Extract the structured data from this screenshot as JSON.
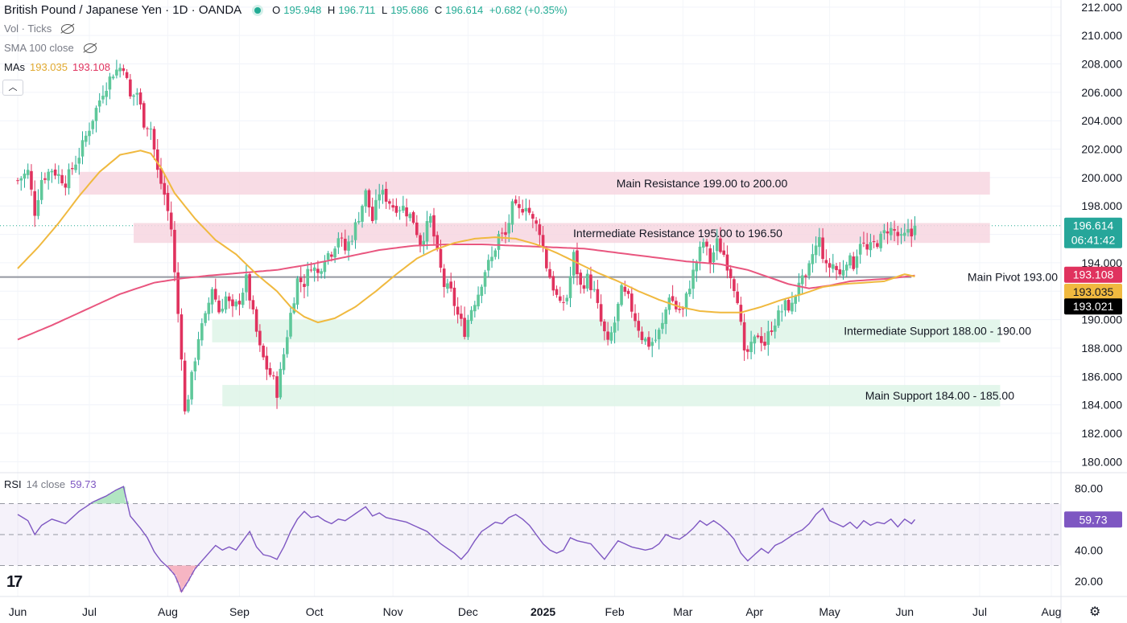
{
  "header": {
    "symbol_title": "British Pound / Japanese Yen · 1D · OANDA",
    "open_label": "O",
    "open": "195.948",
    "high_label": "H",
    "high": "196.711",
    "low_label": "L",
    "low": "195.686",
    "close_label": "C",
    "close": "196.614",
    "change": "+0.682 (+0.35%)"
  },
  "indicators": {
    "vol_label": "Vol · Ticks",
    "sma_label": "SMA 100 close",
    "mas_label": "MAs",
    "ma_fast_value": "193.035",
    "ma_slow_value": "193.108",
    "rsi_label": "RSI",
    "rsi_params": "14 close",
    "rsi_value": "59.73"
  },
  "price_tags": {
    "last_price": "196.614",
    "countdown": "06:41:42",
    "ma_slow": "193.108",
    "ma_fast": "193.035",
    "pivot": "193.021"
  },
  "colors": {
    "up": "#22ab94",
    "up_fill": "#5fc89a",
    "down": "#e0325e",
    "ma_fast": "#f0b93f",
    "ma_slow": "#e9567f",
    "rsi": "#7e57c2",
    "resistance_zone": "#f7d6e0",
    "support_zone": "#def5e8"
  },
  "chart_data": {
    "type": "candlestick",
    "title": "British Pound / Japanese Yen · 1D · OANDA",
    "price_axis": {
      "ylim": [
        179.0,
        212.5
      ],
      "ticks": [
        "212.000",
        "210.000",
        "208.000",
        "206.000",
        "204.000",
        "202.000",
        "200.000",
        "198.000",
        "196.000",
        "194.000",
        "192.000",
        "190.000",
        "188.000",
        "186.000",
        "184.000",
        "182.000",
        "180.000"
      ]
    },
    "time_axis": {
      "labels": [
        "Jun",
        "Jul",
        "Aug",
        "Sep",
        "Oct",
        "Nov",
        "Dec",
        "2025",
        "Feb",
        "Mar",
        "Apr",
        "May",
        "Jun",
        "Jul",
        "Aug"
      ],
      "label_index": [
        0,
        21,
        44,
        65,
        87,
        110,
        132,
        154,
        175,
        195,
        216,
        238,
        260,
        282,
        303
      ],
      "total_days": 303
    },
    "zones": [
      {
        "label": "Main Resistance 199.00 to 200.00",
        "low": 198.8,
        "high": 200.4,
        "start": 18,
        "end": 285,
        "kind": "resistance"
      },
      {
        "label": "Intermediate Resistance 195.00 to 196.50",
        "low": 195.4,
        "high": 196.8,
        "start": 34,
        "end": 285,
        "kind": "resistance"
      },
      {
        "label": "Intermediate Support 188.00 - 190.00",
        "low": 188.4,
        "high": 190.0,
        "start": 57,
        "end": 288,
        "kind": "support"
      },
      {
        "label": "Main Support 184.00 - 185.00",
        "low": 183.9,
        "high": 185.4,
        "start": 60,
        "end": 288,
        "kind": "support"
      }
    ],
    "pivot": {
      "label": "Main Pivot 193.00",
      "value": 193.0
    },
    "anchors": [
      [
        0,
        199.8
      ],
      [
        3,
        200.4
      ],
      [
        5,
        197.6
      ],
      [
        7,
        199.9
      ],
      [
        10,
        200.6
      ],
      [
        14,
        199.7
      ],
      [
        18,
        201.6
      ],
      [
        22,
        204.2
      ],
      [
        25,
        206.1
      ],
      [
        28,
        207.4
      ],
      [
        31,
        207.9
      ],
      [
        33,
        205.6
      ],
      [
        35,
        206.0
      ],
      [
        37,
        203.9
      ],
      [
        39,
        203.5
      ],
      [
        41,
        200.4
      ],
      [
        43,
        198.8
      ],
      [
        45,
        196.4
      ],
      [
        46,
        193.2
      ],
      [
        48,
        187.6
      ],
      [
        49,
        183.4
      ],
      [
        51,
        185.9
      ],
      [
        53,
        188.8
      ],
      [
        55,
        190.1
      ],
      [
        57,
        192.3
      ],
      [
        59,
        190.6
      ],
      [
        61,
        191.6
      ],
      [
        63,
        190.6
      ],
      [
        65,
        191.4
      ],
      [
        67,
        192.8
      ],
      [
        69,
        190.3
      ],
      [
        71,
        187.9
      ],
      [
        73,
        186.6
      ],
      [
        75,
        185.7
      ],
      [
        76,
        184.9
      ],
      [
        78,
        187.6
      ],
      [
        80,
        190.4
      ],
      [
        82,
        192.8
      ],
      [
        84,
        192.6
      ],
      [
        86,
        193.9
      ],
      [
        88,
        193.2
      ],
      [
        90,
        194.5
      ],
      [
        92,
        194.8
      ],
      [
        94,
        195.9
      ],
      [
        96,
        194.9
      ],
      [
        98,
        195.9
      ],
      [
        100,
        197.3
      ],
      [
        102,
        198.9
      ],
      [
        104,
        197.0
      ],
      [
        106,
        199.0
      ],
      [
        108,
        198.6
      ],
      [
        110,
        198.0
      ],
      [
        113,
        197.9
      ],
      [
        116,
        197.0
      ],
      [
        118,
        195.4
      ],
      [
        121,
        197.1
      ],
      [
        123,
        194.6
      ],
      [
        125,
        192.4
      ],
      [
        127,
        191.9
      ],
      [
        129,
        190.3
      ],
      [
        131,
        189.2
      ],
      [
        133,
        190.8
      ],
      [
        135,
        191.9
      ],
      [
        137,
        193.5
      ],
      [
        139,
        194.3
      ],
      [
        141,
        195.9
      ],
      [
        143,
        195.9
      ],
      [
        145,
        197.9
      ],
      [
        147,
        197.6
      ],
      [
        149,
        198.2
      ],
      [
        151,
        196.9
      ],
      [
        153,
        196.3
      ],
      [
        155,
        193.8
      ],
      [
        157,
        192.3
      ],
      [
        159,
        190.9
      ],
      [
        161,
        191.6
      ],
      [
        163,
        194.5
      ],
      [
        165,
        192.3
      ],
      [
        167,
        192.9
      ],
      [
        169,
        191.9
      ],
      [
        171,
        189.8
      ],
      [
        173,
        188.2
      ],
      [
        175,
        189.8
      ],
      [
        177,
        192.0
      ],
      [
        179,
        191.4
      ],
      [
        181,
        190.1
      ],
      [
        183,
        188.8
      ],
      [
        185,
        188.3
      ],
      [
        187,
        188.6
      ],
      [
        189,
        189.6
      ],
      [
        191,
        191.8
      ],
      [
        193,
        190.8
      ],
      [
        195,
        190.6
      ],
      [
        197,
        192.5
      ],
      [
        199,
        194.1
      ],
      [
        201,
        195.5
      ],
      [
        203,
        194.1
      ],
      [
        205,
        195.4
      ],
      [
        207,
        194.6
      ],
      [
        209,
        193.2
      ],
      [
        211,
        191.6
      ],
      [
        213,
        187.4
      ],
      [
        215,
        188.0
      ],
      [
        217,
        189.0
      ],
      [
        219,
        188.3
      ],
      [
        221,
        189.5
      ],
      [
        223,
        190.3
      ],
      [
        225,
        191.0
      ],
      [
        227,
        190.9
      ],
      [
        229,
        192.8
      ],
      [
        231,
        192.6
      ],
      [
        233,
        194.6
      ],
      [
        235,
        195.6
      ],
      [
        237,
        193.6
      ],
      [
        239,
        193.9
      ],
      [
        241,
        193.1
      ],
      [
        243,
        194.3
      ],
      [
        245,
        193.9
      ],
      [
        247,
        195.6
      ],
      [
        249,
        194.8
      ],
      [
        251,
        195.3
      ],
      [
        253,
        195.7
      ],
      [
        255,
        196.4
      ],
      [
        257,
        196.2
      ],
      [
        259,
        195.6
      ],
      [
        261,
        196.1
      ],
      [
        262,
        195.9
      ],
      [
        263,
        196.614
      ]
    ],
    "ma_fast": [
      [
        0,
        193.6
      ],
      [
        6,
        195.1
      ],
      [
        12,
        196.8
      ],
      [
        18,
        198.7
      ],
      [
        24,
        200.4
      ],
      [
        30,
        201.6
      ],
      [
        36,
        201.9
      ],
      [
        39,
        201.7
      ],
      [
        42,
        200.7
      ],
      [
        46,
        198.9
      ],
      [
        52,
        197.1
      ],
      [
        58,
        195.6
      ],
      [
        64,
        194.6
      ],
      [
        70,
        193.2
      ],
      [
        76,
        192.0
      ],
      [
        80,
        190.9
      ],
      [
        84,
        190.2
      ],
      [
        88,
        189.8
      ],
      [
        93,
        190.1
      ],
      [
        99,
        190.9
      ],
      [
        105,
        192.0
      ],
      [
        111,
        193.2
      ],
      [
        117,
        194.3
      ],
      [
        122,
        194.9
      ],
      [
        128,
        195.4
      ],
      [
        134,
        195.7
      ],
      [
        140,
        195.8
      ],
      [
        146,
        195.7
      ],
      [
        152,
        195.3
      ],
      [
        158,
        194.7
      ],
      [
        164,
        194.0
      ],
      [
        170,
        193.3
      ],
      [
        176,
        192.7
      ],
      [
        182,
        192.0
      ],
      [
        188,
        191.4
      ],
      [
        194,
        190.9
      ],
      [
        200,
        190.6
      ],
      [
        206,
        190.5
      ],
      [
        212,
        190.5
      ],
      [
        218,
        190.9
      ],
      [
        224,
        191.4
      ],
      [
        230,
        191.8
      ],
      [
        236,
        192.3
      ],
      [
        242,
        192.5
      ],
      [
        248,
        192.6
      ],
      [
        254,
        192.7
      ],
      [
        260,
        193.2
      ],
      [
        263,
        193.035
      ]
    ],
    "ma_slow": [
      [
        0,
        188.6
      ],
      [
        10,
        189.6
      ],
      [
        20,
        190.7
      ],
      [
        30,
        191.8
      ],
      [
        40,
        192.6
      ],
      [
        48,
        192.9
      ],
      [
        56,
        193.1
      ],
      [
        66,
        193.3
      ],
      [
        76,
        193.5
      ],
      [
        86,
        193.9
      ],
      [
        96,
        194.4
      ],
      [
        106,
        194.9
      ],
      [
        116,
        195.2
      ],
      [
        126,
        195.3
      ],
      [
        136,
        195.3
      ],
      [
        146,
        195.2
      ],
      [
        156,
        195.1
      ],
      [
        166,
        195.0
      ],
      [
        176,
        194.7
      ],
      [
        186,
        194.4
      ],
      [
        196,
        194.1
      ],
      [
        206,
        193.9
      ],
      [
        214,
        193.5
      ],
      [
        220,
        193.0
      ],
      [
        226,
        192.5
      ],
      [
        232,
        192.2
      ],
      [
        238,
        192.4
      ],
      [
        244,
        192.7
      ],
      [
        250,
        192.8
      ],
      [
        256,
        192.9
      ],
      [
        263,
        193.108
      ]
    ],
    "rsi": {
      "name": "RSI",
      "ylim": [
        10,
        90
      ],
      "ticks": [
        "80.00",
        "60.00",
        "40.00",
        "20.00"
      ],
      "levels": [
        70,
        50,
        30
      ],
      "anchors": [
        [
          0,
          63
        ],
        [
          3,
          59
        ],
        [
          5,
          50
        ],
        [
          7,
          56
        ],
        [
          10,
          60
        ],
        [
          14,
          57
        ],
        [
          18,
          65
        ],
        [
          22,
          71
        ],
        [
          26,
          75
        ],
        [
          29,
          79
        ],
        [
          31,
          81
        ],
        [
          33,
          62
        ],
        [
          36,
          54
        ],
        [
          38,
          48
        ],
        [
          40,
          39
        ],
        [
          42,
          33
        ],
        [
          44,
          29
        ],
        [
          46,
          24
        ],
        [
          47,
          19
        ],
        [
          48,
          13
        ],
        [
          50,
          20
        ],
        [
          52,
          28
        ],
        [
          54,
          33
        ],
        [
          56,
          38
        ],
        [
          58,
          43
        ],
        [
          60,
          40
        ],
        [
          62,
          42
        ],
        [
          64,
          40
        ],
        [
          66,
          46
        ],
        [
          68,
          52
        ],
        [
          70,
          42
        ],
        [
          72,
          37
        ],
        [
          74,
          36
        ],
        [
          76,
          34
        ],
        [
          78,
          42
        ],
        [
          80,
          52
        ],
        [
          82,
          60
        ],
        [
          84,
          65
        ],
        [
          86,
          61
        ],
        [
          88,
          62
        ],
        [
          90,
          59
        ],
        [
          92,
          57
        ],
        [
          94,
          60
        ],
        [
          96,
          59
        ],
        [
          98,
          62
        ],
        [
          100,
          65
        ],
        [
          102,
          68
        ],
        [
          104,
          62
        ],
        [
          106,
          64
        ],
        [
          108,
          61
        ],
        [
          110,
          60
        ],
        [
          112,
          59
        ],
        [
          114,
          58
        ],
        [
          116,
          56
        ],
        [
          118,
          54
        ],
        [
          120,
          52
        ],
        [
          122,
          48
        ],
        [
          124,
          44
        ],
        [
          126,
          41
        ],
        [
          128,
          38
        ],
        [
          130,
          34
        ],
        [
          132,
          39
        ],
        [
          134,
          46
        ],
        [
          136,
          52
        ],
        [
          138,
          55
        ],
        [
          140,
          58
        ],
        [
          142,
          57
        ],
        [
          144,
          61
        ],
        [
          146,
          63
        ],
        [
          148,
          60
        ],
        [
          150,
          56
        ],
        [
          152,
          50
        ],
        [
          154,
          44
        ],
        [
          156,
          40
        ],
        [
          158,
          38
        ],
        [
          160,
          40
        ],
        [
          162,
          48
        ],
        [
          164,
          46
        ],
        [
          166,
          45
        ],
        [
          168,
          44
        ],
        [
          170,
          39
        ],
        [
          172,
          34
        ],
        [
          174,
          40
        ],
        [
          176,
          46
        ],
        [
          178,
          44
        ],
        [
          180,
          42
        ],
        [
          182,
          41
        ],
        [
          184,
          40
        ],
        [
          186,
          41
        ],
        [
          188,
          44
        ],
        [
          190,
          50
        ],
        [
          192,
          48
        ],
        [
          194,
          47
        ],
        [
          196,
          50
        ],
        [
          198,
          54
        ],
        [
          200,
          59
        ],
        [
          202,
          56
        ],
        [
          204,
          59
        ],
        [
          206,
          56
        ],
        [
          208,
          52
        ],
        [
          210,
          47
        ],
        [
          212,
          38
        ],
        [
          214,
          33
        ],
        [
          216,
          37
        ],
        [
          218,
          41
        ],
        [
          220,
          38
        ],
        [
          222,
          43
        ],
        [
          224,
          45
        ],
        [
          226,
          48
        ],
        [
          228,
          51
        ],
        [
          230,
          53
        ],
        [
          232,
          57
        ],
        [
          234,
          63
        ],
        [
          236,
          67
        ],
        [
          238,
          59
        ],
        [
          240,
          57
        ],
        [
          242,
          55
        ],
        [
          244,
          58
        ],
        [
          246,
          54
        ],
        [
          248,
          59
        ],
        [
          250,
          56
        ],
        [
          252,
          58
        ],
        [
          254,
          57
        ],
        [
          256,
          60
        ],
        [
          258,
          55
        ],
        [
          260,
          60
        ],
        [
          262,
          57
        ],
        [
          263,
          59.73
        ]
      ]
    }
  }
}
